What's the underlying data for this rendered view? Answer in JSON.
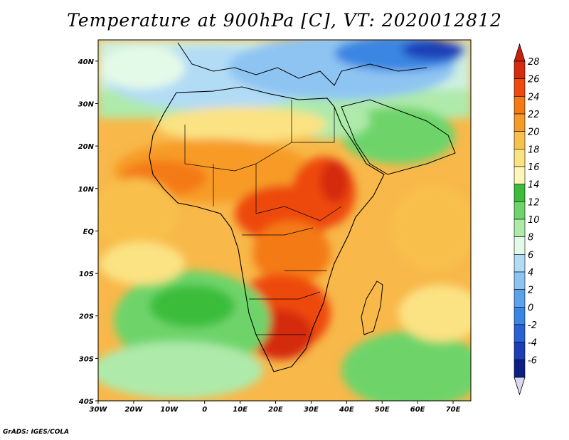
{
  "title": "Temperature at 900hPa [C], VT: 2020012812",
  "credit": "GrADS: IGES/COLA",
  "map": {
    "lon_range": [
      -30,
      75
    ],
    "lat_range": [
      -40,
      45
    ],
    "lon_ticks": [
      {
        "v": -30,
        "label": "30W"
      },
      {
        "v": -20,
        "label": "20W"
      },
      {
        "v": -10,
        "label": "10W"
      },
      {
        "v": 0,
        "label": "0"
      },
      {
        "v": 10,
        "label": "10E"
      },
      {
        "v": 20,
        "label": "20E"
      },
      {
        "v": 30,
        "label": "30E"
      },
      {
        "v": 40,
        "label": "40E"
      },
      {
        "v": 50,
        "label": "50E"
      },
      {
        "v": 60,
        "label": "60E"
      },
      {
        "v": 70,
        "label": "70E"
      }
    ],
    "lat_ticks": [
      {
        "v": 40,
        "label": "40N"
      },
      {
        "v": 30,
        "label": "30N"
      },
      {
        "v": 20,
        "label": "20N"
      },
      {
        "v": 10,
        "label": "10N"
      },
      {
        "v": 0,
        "label": "EQ"
      },
      {
        "v": -10,
        "label": "10S"
      },
      {
        "v": -20,
        "label": "20S"
      },
      {
        "v": -30,
        "label": "30S"
      },
      {
        "v": -40,
        "label": "40S"
      }
    ]
  },
  "colorbar": {
    "levels": [
      {
        "label": "28",
        "color": "#d42c0e"
      },
      {
        "label": "26",
        "color": "#ee4a10"
      },
      {
        "label": "24",
        "color": "#f47a14"
      },
      {
        "label": "22",
        "color": "#f79b28"
      },
      {
        "label": "20",
        "color": "#f8c04c"
      },
      {
        "label": "18",
        "color": "#fbe283"
      },
      {
        "label": "16",
        "color": "#fdf6b8"
      },
      {
        "label": "14",
        "color": "#3bbd3b"
      },
      {
        "label": "12",
        "color": "#6ed46b"
      },
      {
        "label": "10",
        "color": "#aeeaaa"
      },
      {
        "label": "8",
        "color": "#e4fae8"
      },
      {
        "label": "6",
        "color": "#b2dcf5"
      },
      {
        "label": "4",
        "color": "#8ec4f2"
      },
      {
        "label": "2",
        "color": "#5aa2ea"
      },
      {
        "label": "0",
        "color": "#3a86e2"
      },
      {
        "label": "-2",
        "color": "#2a62d6"
      },
      {
        "label": "-4",
        "color": "#1c3fb7"
      },
      {
        "label": "-6",
        "color": "#0e1f84"
      }
    ],
    "top_color": "#c8200a",
    "bottom_color": "#dcd8f4"
  }
}
